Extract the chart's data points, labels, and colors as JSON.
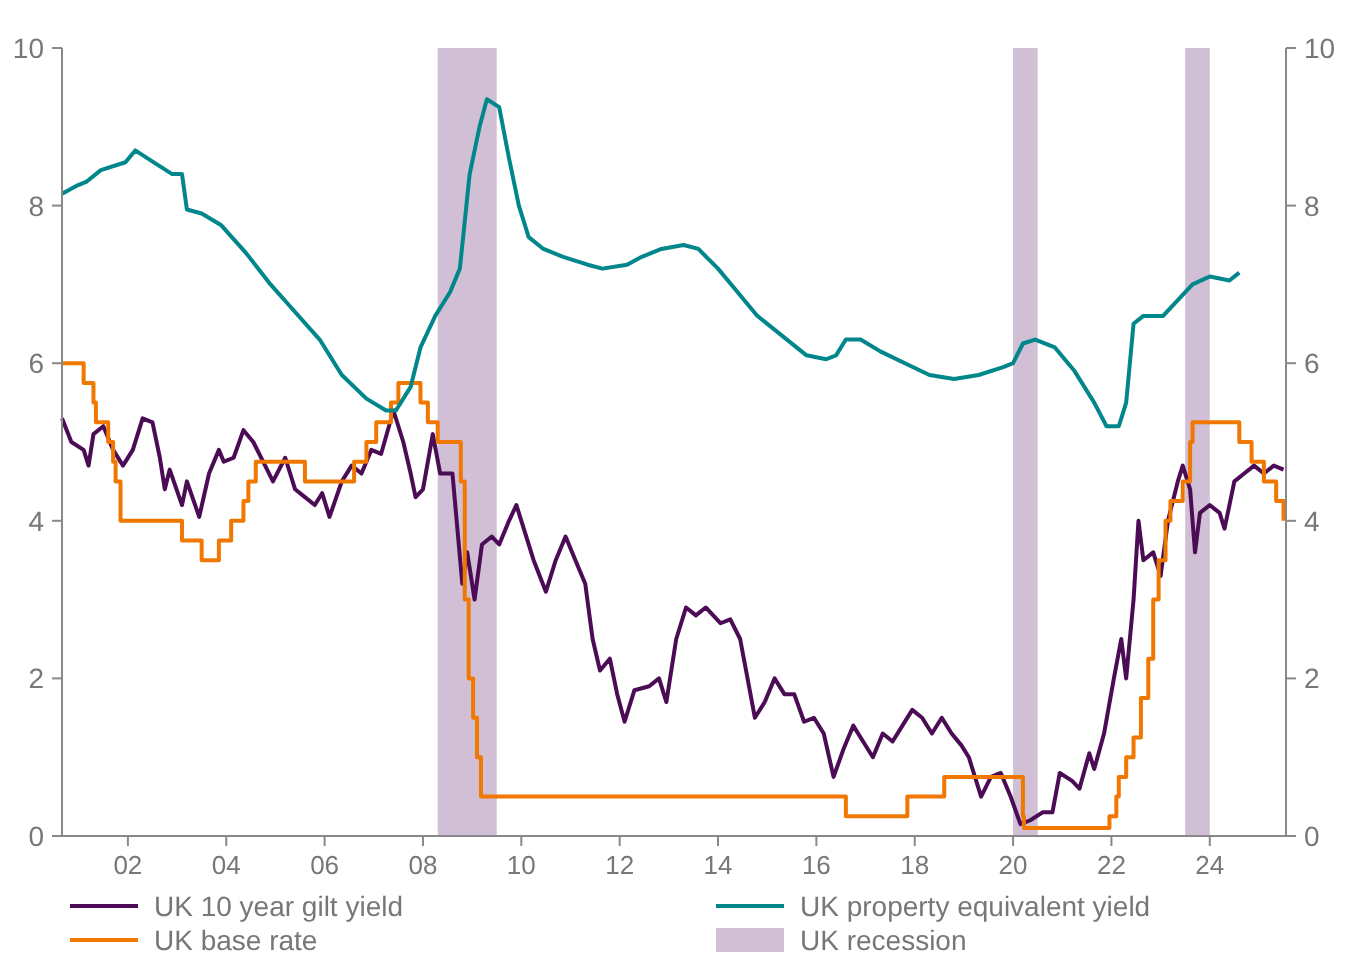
{
  "chart_data": {
    "type": "line",
    "xlim": [
      2000.66,
      2025.55
    ],
    "xticks": [
      {
        "value": 2002,
        "label": "02"
      },
      {
        "value": 2004,
        "label": "04"
      },
      {
        "value": 2006,
        "label": "06"
      },
      {
        "value": 2008,
        "label": "08"
      },
      {
        "value": 2010,
        "label": "10"
      },
      {
        "value": 2012,
        "label": "12"
      },
      {
        "value": 2014,
        "label": "14"
      },
      {
        "value": 2016,
        "label": "16"
      },
      {
        "value": 2018,
        "label": "18"
      },
      {
        "value": 2020,
        "label": "20"
      },
      {
        "value": 2022,
        "label": "22"
      },
      {
        "value": 2024,
        "label": "24"
      }
    ],
    "ylim": [
      0,
      10
    ],
    "yticks": [
      0,
      2,
      4,
      6,
      8,
      10
    ],
    "y2lim": [
      0,
      10
    ],
    "y2ticks": [
      0,
      2,
      4,
      6,
      8,
      10
    ],
    "legend": "bottom",
    "series": [
      {
        "name": "UK 10 year gilt yield",
        "color": "#4b0c55",
        "x": [
          2000.66,
          2000.85,
          2001.1,
          2001.2,
          2001.3,
          2001.5,
          2001.7,
          2001.9,
          2002.1,
          2002.3,
          2002.5,
          2002.65,
          2002.75,
          2002.85,
          2003.1,
          2003.2,
          2003.45,
          2003.65,
          2003.85,
          2003.95,
          2004.15,
          2004.35,
          2004.55,
          2004.75,
          2004.95,
          2005.2,
          2005.4,
          2005.6,
          2005.8,
          2005.95,
          2006.1,
          2006.35,
          2006.55,
          2006.75,
          2006.95,
          2007.15,
          2007.4,
          2007.6,
          2007.75,
          2007.85,
          2008.0,
          2008.2,
          2008.35,
          2008.6,
          2008.8,
          2008.9,
          2009.05,
          2009.2,
          2009.4,
          2009.55,
          2009.75,
          2009.9,
          2010.05,
          2010.25,
          2010.5,
          2010.7,
          2010.9,
          2011.1,
          2011.3,
          2011.45,
          2011.6,
          2011.8,
          2011.95,
          2012.1,
          2012.3,
          2012.6,
          2012.8,
          2012.95,
          2013.15,
          2013.35,
          2013.55,
          2013.75,
          2014.05,
          2014.25,
          2014.45,
          2014.6,
          2014.75,
          2014.95,
          2015.15,
          2015.35,
          2015.55,
          2015.75,
          2015.95,
          2016.15,
          2016.35,
          2016.55,
          2016.75,
          2016.95,
          2017.15,
          2017.35,
          2017.55,
          2017.75,
          2017.95,
          2018.15,
          2018.35,
          2018.55,
          2018.75,
          2018.95,
          2019.1,
          2019.35,
          2019.55,
          2019.75,
          2019.95,
          2020.15,
          2020.35,
          2020.6,
          2020.8,
          2020.95,
          2021.2,
          2021.35,
          2021.55,
          2021.65,
          2021.85,
          2022.05,
          2022.2,
          2022.3,
          2022.45,
          2022.55,
          2022.65,
          2022.85,
          2023.0,
          2023.15,
          2023.35,
          2023.45,
          2023.6,
          2023.7,
          2023.8,
          2024.0,
          2024.2,
          2024.3,
          2024.5,
          2024.7,
          2024.9,
          2025.1,
          2025.3,
          2025.5
        ],
        "values": [
          5.3,
          5.0,
          4.9,
          4.7,
          5.1,
          5.2,
          4.9,
          4.7,
          4.9,
          5.3,
          5.25,
          4.8,
          4.4,
          4.65,
          4.2,
          4.5,
          4.05,
          4.6,
          4.9,
          4.75,
          4.8,
          5.15,
          5.0,
          4.75,
          4.5,
          4.8,
          4.4,
          4.3,
          4.2,
          4.35,
          4.05,
          4.5,
          4.7,
          4.6,
          4.9,
          4.85,
          5.4,
          5.0,
          4.6,
          4.3,
          4.4,
          5.1,
          4.6,
          4.6,
          3.2,
          3.6,
          3.0,
          3.7,
          3.8,
          3.7,
          4.0,
          4.2,
          3.9,
          3.5,
          3.1,
          3.5,
          3.8,
          3.5,
          3.2,
          2.5,
          2.1,
          2.25,
          1.8,
          1.45,
          1.85,
          1.9,
          2.0,
          1.7,
          2.5,
          2.9,
          2.8,
          2.9,
          2.7,
          2.75,
          2.5,
          2.0,
          1.5,
          1.7,
          2.0,
          1.8,
          1.8,
          1.45,
          1.5,
          1.3,
          0.75,
          1.1,
          1.4,
          1.2,
          1.0,
          1.3,
          1.2,
          1.4,
          1.6,
          1.5,
          1.3,
          1.5,
          1.3,
          1.15,
          1.0,
          0.5,
          0.75,
          0.8,
          0.5,
          0.15,
          0.2,
          0.3,
          0.3,
          0.8,
          0.7,
          0.6,
          1.05,
          0.85,
          1.3,
          2.0,
          2.5,
          2.0,
          3.0,
          4.0,
          3.5,
          3.6,
          3.3,
          4.0,
          4.5,
          4.7,
          4.4,
          3.6,
          4.1,
          4.2,
          4.1,
          3.9,
          4.5,
          4.6,
          4.7,
          4.6,
          4.7,
          4.65
        ]
      },
      {
        "name": "UK base rate",
        "type": "step",
        "color": "#f07800",
        "x": [
          2000.66,
          2001.1,
          2001.3,
          2001.35,
          2001.6,
          2001.7,
          2001.75,
          2001.85,
          2003.1,
          2003.5,
          2003.85,
          2004.1,
          2004.35,
          2004.45,
          2004.6,
          2005.6,
          2006.6,
          2006.85,
          2007.05,
          2007.35,
          2007.5,
          2007.95,
          2008.1,
          2008.3,
          2008.77,
          2008.85,
          2008.93,
          2009.02,
          2009.1,
          2009.18,
          2016.6,
          2017.85,
          2018.6,
          2020.2,
          2020.22,
          2021.96,
          2022.1,
          2022.15,
          2022.3,
          2022.45,
          2022.6,
          2022.75,
          2022.85,
          2022.96,
          2023.1,
          2023.2,
          2023.45,
          2023.6,
          2023.65,
          2024.6,
          2024.85,
          2025.1,
          2025.35,
          2025.5
        ],
        "values": [
          6.0,
          5.75,
          5.5,
          5.25,
          5.0,
          4.75,
          4.5,
          4.0,
          3.75,
          3.5,
          3.75,
          4.0,
          4.25,
          4.5,
          4.75,
          4.5,
          4.75,
          5.0,
          5.25,
          5.5,
          5.75,
          5.5,
          5.25,
          5.0,
          4.5,
          3.0,
          2.0,
          1.5,
          1.0,
          0.5,
          0.25,
          0.5,
          0.75,
          0.25,
          0.1,
          0.25,
          0.5,
          0.75,
          1.0,
          1.25,
          1.75,
          2.25,
          3.0,
          3.5,
          4.0,
          4.25,
          4.5,
          5.0,
          5.25,
          5.0,
          4.75,
          4.5,
          4.25,
          4.0
        ]
      },
      {
        "name": "UK property equivalent yield",
        "color": "#00868b",
        "x": [
          2000.66,
          2000.95,
          2001.15,
          2001.45,
          2001.95,
          2002.15,
          2002.4,
          2002.9,
          2003.1,
          2003.2,
          2003.5,
          2003.9,
          2004.4,
          2004.9,
          2005.4,
          2005.9,
          2006.35,
          2006.85,
          2007.25,
          2007.45,
          2007.75,
          2007.95,
          2008.25,
          2008.55,
          2008.75,
          2008.95,
          2009.15,
          2009.3,
          2009.55,
          2009.75,
          2009.95,
          2010.15,
          2010.45,
          2010.85,
          2011.35,
          2011.65,
          2012.15,
          2012.45,
          2012.85,
          2013.3,
          2013.6,
          2014.0,
          2014.4,
          2014.8,
          2015.3,
          2015.8,
          2016.2,
          2016.4,
          2016.6,
          2016.9,
          2017.3,
          2017.8,
          2018.3,
          2018.8,
          2019.3,
          2019.8,
          2020.0,
          2020.2,
          2020.45,
          2020.85,
          2021.25,
          2021.65,
          2021.9,
          2022.15,
          2022.3,
          2022.45,
          2022.65,
          2023.05,
          2023.35,
          2023.65,
          2024.0,
          2024.4,
          2024.6
        ],
        "values": [
          8.15,
          8.25,
          8.3,
          8.45,
          8.55,
          8.7,
          8.6,
          8.4,
          8.4,
          7.95,
          7.9,
          7.75,
          7.4,
          7.0,
          6.65,
          6.3,
          5.85,
          5.55,
          5.4,
          5.4,
          5.7,
          6.2,
          6.6,
          6.9,
          7.2,
          8.4,
          9.0,
          9.35,
          9.25,
          8.6,
          8.0,
          7.6,
          7.45,
          7.35,
          7.25,
          7.2,
          7.25,
          7.35,
          7.45,
          7.5,
          7.45,
          7.2,
          6.9,
          6.6,
          6.35,
          6.1,
          6.05,
          6.1,
          6.3,
          6.3,
          6.15,
          6.0,
          5.85,
          5.8,
          5.85,
          5.95,
          6.0,
          6.25,
          6.3,
          6.2,
          5.9,
          5.5,
          5.2,
          5.2,
          5.5,
          6.5,
          6.6,
          6.6,
          6.8,
          7.0,
          7.1,
          7.05,
          7.15
        ]
      }
    ],
    "bands": [
      {
        "axis": "x",
        "from": 2008.3,
        "to": 2009.5,
        "label": "UK recession",
        "color": "#d1bfd6"
      },
      {
        "axis": "x",
        "from": 2020.0,
        "to": 2020.5,
        "color": "#d1bfd6"
      },
      {
        "axis": "x",
        "from": 2023.5,
        "to": 2024.0,
        "color": "#d1bfd6"
      }
    ]
  }
}
